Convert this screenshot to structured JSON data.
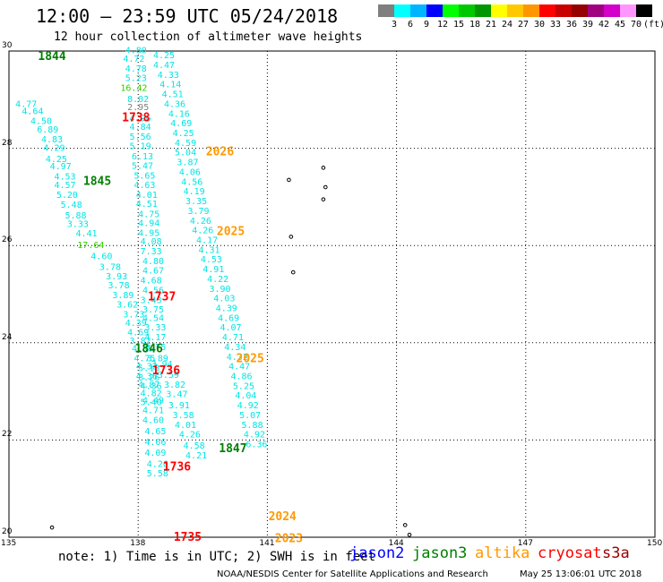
{
  "header": {
    "title": "12:00 – 23:59 UTC 05/24/2018",
    "subtitle": "12 hour collection of altimeter wave heights"
  },
  "colorbar": {
    "colors": [
      "#7f7f7f",
      "#00ffff",
      "#00b4ff",
      "#0000ff",
      "#00ff00",
      "#00c800",
      "#009600",
      "#ffff00",
      "#ffc800",
      "#ff9600",
      "#ff0000",
      "#c80000",
      "#960000",
      "#a00080",
      "#d200c8",
      "#ff96ff",
      "#000000"
    ],
    "labels": [
      "3",
      "6",
      "9",
      "12",
      "15",
      "18",
      "21",
      "24",
      "27",
      "30",
      "33",
      "36",
      "39",
      "42",
      "45",
      "70",
      "(ft)"
    ]
  },
  "chart_data": {
    "type": "scatter",
    "title": "12:00 – 23:59 UTC 05/24/2018",
    "subtitle": "12 hour collection of altimeter wave heights",
    "xlim": [
      135,
      150
    ],
    "ylim": [
      20,
      30
    ],
    "x_ticks": [
      "135",
      "138",
      "141",
      "144",
      "147",
      "150"
    ],
    "y_ticks": [
      "20",
      "22",
      "24",
      "26",
      "28",
      "30"
    ],
    "grid": true,
    "colors": {
      "jason2": "#0000ff",
      "jason3": "#008000",
      "altika": "#ff9900",
      "cryosat": "#ff0000",
      "s3a": "#990000",
      "swh_low": "#00e5e5",
      "swh_mid": "#33cc00",
      "no_data": "#808080"
    },
    "legend": [
      "jason2",
      "jason3",
      "altika",
      "cryosat",
      "s3a"
    ],
    "swh_tracks": [
      {
        "name": "track-a",
        "points": [
          {
            "lon": 135.4,
            "lat": 28.85,
            "v": "4.77"
          },
          {
            "lon": 135.55,
            "lat": 28.7,
            "v": "4.64"
          },
          {
            "lon": 135.75,
            "lat": 28.5,
            "v": "4.50"
          },
          {
            "lon": 135.9,
            "lat": 28.32,
            "v": "6.89"
          },
          {
            "lon": 136.0,
            "lat": 28.12,
            "v": "4.83"
          },
          {
            "lon": 136.05,
            "lat": 27.95,
            "v": "4.29"
          },
          {
            "lon": 136.1,
            "lat": 27.72,
            "v": "4.25"
          },
          {
            "lon": 136.2,
            "lat": 27.57,
            "v": "4.97"
          },
          {
            "lon": 136.3,
            "lat": 27.36,
            "v": "4.53"
          },
          {
            "lon": 136.3,
            "lat": 27.18,
            "v": "4.57"
          },
          {
            "lon": 136.35,
            "lat": 26.98,
            "v": "5.20"
          },
          {
            "lon": 136.45,
            "lat": 26.78,
            "v": "5.48"
          },
          {
            "lon": 136.55,
            "lat": 26.56,
            "v": "5.88"
          },
          {
            "lon": 136.6,
            "lat": 26.38,
            "v": "3.33"
          },
          {
            "lon": 136.8,
            "lat": 26.19,
            "v": "4.41"
          },
          {
            "lon": 136.9,
            "lat": 25.95,
            "v": "17.64",
            "c": "#33cc00"
          },
          {
            "lon": 137.15,
            "lat": 25.72,
            "v": "4.60"
          },
          {
            "lon": 137.35,
            "lat": 25.5,
            "v": "3.78"
          },
          {
            "lon": 137.5,
            "lat": 25.3,
            "v": "3.93"
          },
          {
            "lon": 137.55,
            "lat": 25.12,
            "v": "3.78"
          },
          {
            "lon": 137.65,
            "lat": 24.92,
            "v": "3.89"
          },
          {
            "lon": 137.75,
            "lat": 24.72,
            "v": "3.62"
          },
          {
            "lon": 137.9,
            "lat": 24.52,
            "v": "3.73"
          },
          {
            "lon": 137.95,
            "lat": 24.35,
            "v": "4.39"
          },
          {
            "lon": 138.0,
            "lat": 24.15,
            "v": "4.69"
          },
          {
            "lon": 138.05,
            "lat": 23.98,
            "v": "3.82"
          },
          {
            "lon": 138.1,
            "lat": 23.82,
            "v": "4.05"
          },
          {
            "lon": 138.15,
            "lat": 23.62,
            "v": "4.75"
          },
          {
            "lon": 138.2,
            "lat": 23.45,
            "v": "4.32"
          },
          {
            "lon": 138.2,
            "lat": 23.25,
            "v": "4.36"
          },
          {
            "lon": 138.25,
            "lat": 23.08,
            "v": "4.87"
          },
          {
            "lon": 138.3,
            "lat": 22.9,
            "v": "4.82"
          },
          {
            "lon": 138.3,
            "lat": 22.72,
            "v": "5.40"
          }
        ]
      },
      {
        "name": "track-b",
        "points": [
          {
            "lon": 137.95,
            "lat": 29.95,
            "v": "4.80"
          },
          {
            "lon": 137.9,
            "lat": 29.78,
            "v": "4.72"
          },
          {
            "lon": 137.95,
            "lat": 29.58,
            "v": "4.78"
          },
          {
            "lon": 137.95,
            "lat": 29.38,
            "v": "5.23"
          },
          {
            "lon": 137.9,
            "lat": 29.18,
            "v": "16.42",
            "c": "#33cc00"
          },
          {
            "lon": 138.0,
            "lat": 28.95,
            "v": "8.02"
          },
          {
            "lon": 138.0,
            "lat": 28.78,
            "v": "2.95",
            "c": "#808080"
          },
          {
            "lon": 138.05,
            "lat": 28.55,
            "v": "4.96"
          },
          {
            "lon": 138.05,
            "lat": 28.38,
            "v": "4.84"
          },
          {
            "lon": 138.05,
            "lat": 28.18,
            "v": "5.56"
          },
          {
            "lon": 138.05,
            "lat": 27.98,
            "v": "5.19"
          },
          {
            "lon": 138.1,
            "lat": 27.77,
            "v": "6.13"
          },
          {
            "lon": 138.1,
            "lat": 27.58,
            "v": "5.47"
          },
          {
            "lon": 138.15,
            "lat": 27.38,
            "v": "5.65"
          },
          {
            "lon": 138.15,
            "lat": 27.18,
            "v": "4.63"
          },
          {
            "lon": 138.2,
            "lat": 26.98,
            "v": "4.01"
          },
          {
            "lon": 138.2,
            "lat": 26.8,
            "v": "4.51"
          },
          {
            "lon": 138.25,
            "lat": 26.58,
            "v": "4.75"
          },
          {
            "lon": 138.25,
            "lat": 26.4,
            "v": "4.94"
          },
          {
            "lon": 138.25,
            "lat": 26.2,
            "v": "4.95"
          },
          {
            "lon": 138.3,
            "lat": 26.02,
            "v": "4.08"
          },
          {
            "lon": 138.3,
            "lat": 25.82,
            "v": "7.33"
          },
          {
            "lon": 138.35,
            "lat": 25.62,
            "v": "4.80"
          },
          {
            "lon": 138.35,
            "lat": 25.42,
            "v": "4.67"
          },
          {
            "lon": 138.3,
            "lat": 25.22,
            "v": "4.68"
          },
          {
            "lon": 138.35,
            "lat": 25.02,
            "v": "4.56"
          },
          {
            "lon": 138.3,
            "lat": 24.82,
            "v": "3.43"
          },
          {
            "lon": 138.35,
            "lat": 24.62,
            "v": "3.75"
          },
          {
            "lon": 138.35,
            "lat": 24.45,
            "v": "4.54"
          },
          {
            "lon": 138.4,
            "lat": 24.25,
            "v": "3.33"
          },
          {
            "lon": 138.4,
            "lat": 24.05,
            "v": "4.17"
          },
          {
            "lon": 138.4,
            "lat": 23.85,
            "v": "3.75"
          },
          {
            "lon": 138.45,
            "lat": 23.62,
            "v": "3.89"
          },
          {
            "lon": 138.25,
            "lat": 23.42,
            "v": "5.13"
          },
          {
            "lon": 138.25,
            "lat": 23.22,
            "v": "8.26"
          },
          {
            "lon": 138.3,
            "lat": 23.05,
            "v": "4.36"
          },
          {
            "lon": 138.35,
            "lat": 22.75,
            "v": "4.49"
          },
          {
            "lon": 138.35,
            "lat": 22.55,
            "v": "4.71"
          },
          {
            "lon": 138.35,
            "lat": 22.35,
            "v": "4.60"
          },
          {
            "lon": 138.4,
            "lat": 22.12,
            "v": "4.65"
          },
          {
            "lon": 138.4,
            "lat": 21.9,
            "v": "4.66"
          },
          {
            "lon": 138.4,
            "lat": 21.68,
            "v": "4.09"
          },
          {
            "lon": 138.45,
            "lat": 21.45,
            "v": "4.20"
          },
          {
            "lon": 138.45,
            "lat": 21.25,
            "v": "5.58"
          }
        ]
      },
      {
        "name": "track-c",
        "points": [
          {
            "lon": 138.55,
            "lat": 23.5,
            "v": "3.94"
          },
          {
            "lon": 138.7,
            "lat": 23.28,
            "v": "3.59"
          },
          {
            "lon": 138.85,
            "lat": 23.08,
            "v": "3.82"
          },
          {
            "lon": 138.9,
            "lat": 22.88,
            "v": "3.47"
          },
          {
            "lon": 138.95,
            "lat": 22.65,
            "v": "3.91"
          },
          {
            "lon": 139.05,
            "lat": 22.45,
            "v": "3.58"
          },
          {
            "lon": 139.1,
            "lat": 22.25,
            "v": "4.01"
          },
          {
            "lon": 139.2,
            "lat": 22.05,
            "v": "4.26"
          },
          {
            "lon": 139.3,
            "lat": 21.82,
            "v": "4.58"
          },
          {
            "lon": 139.35,
            "lat": 21.62,
            "v": "4.21"
          }
        ]
      },
      {
        "name": "track-d",
        "points": [
          {
            "lon": 138.6,
            "lat": 29.85,
            "v": "4.25"
          },
          {
            "lon": 138.6,
            "lat": 29.65,
            "v": "4.47"
          },
          {
            "lon": 138.7,
            "lat": 29.45,
            "v": "4.33"
          },
          {
            "lon": 138.75,
            "lat": 29.25,
            "v": "4.14"
          },
          {
            "lon": 138.8,
            "lat": 29.05,
            "v": "4.51"
          },
          {
            "lon": 138.85,
            "lat": 28.85,
            "v": "4.36"
          },
          {
            "lon": 138.95,
            "lat": 28.65,
            "v": "4.16"
          },
          {
            "lon": 139.0,
            "lat": 28.45,
            "v": "4.69"
          },
          {
            "lon": 139.05,
            "lat": 28.25,
            "v": "4.25"
          },
          {
            "lon": 139.1,
            "lat": 28.05,
            "v": "4.59"
          },
          {
            "lon": 139.1,
            "lat": 27.85,
            "v": "5.04"
          },
          {
            "lon": 139.15,
            "lat": 27.65,
            "v": "3.87"
          },
          {
            "lon": 139.2,
            "lat": 27.45,
            "v": "4.06"
          },
          {
            "lon": 139.25,
            "lat": 27.25,
            "v": "4.56"
          },
          {
            "lon": 139.3,
            "lat": 27.05,
            "v": "4.19"
          },
          {
            "lon": 139.35,
            "lat": 26.85,
            "v": "3.35"
          },
          {
            "lon": 139.4,
            "lat": 26.65,
            "v": "3.79"
          },
          {
            "lon": 139.45,
            "lat": 26.45,
            "v": "4.26"
          },
          {
            "lon": 139.5,
            "lat": 26.25,
            "v": "4.26"
          },
          {
            "lon": 139.6,
            "lat": 26.05,
            "v": "4.17"
          },
          {
            "lon": 139.65,
            "lat": 25.85,
            "v": "4.31"
          },
          {
            "lon": 139.7,
            "lat": 25.65,
            "v": "4.53"
          },
          {
            "lon": 139.75,
            "lat": 25.45,
            "v": "4.91"
          },
          {
            "lon": 139.85,
            "lat": 25.25,
            "v": "4.22"
          },
          {
            "lon": 139.9,
            "lat": 25.05,
            "v": "3.90"
          },
          {
            "lon": 140.0,
            "lat": 24.85,
            "v": "4.03"
          },
          {
            "lon": 140.05,
            "lat": 24.65,
            "v": "4.39"
          },
          {
            "lon": 140.1,
            "lat": 24.45,
            "v": "4.69"
          },
          {
            "lon": 140.15,
            "lat": 24.25,
            "v": "4.07"
          },
          {
            "lon": 140.2,
            "lat": 24.05,
            "v": "4.71"
          },
          {
            "lon": 140.25,
            "lat": 23.85,
            "v": "4.34"
          },
          {
            "lon": 140.3,
            "lat": 23.65,
            "v": "4.32"
          },
          {
            "lon": 140.35,
            "lat": 23.45,
            "v": "4.47"
          },
          {
            "lon": 140.4,
            "lat": 23.25,
            "v": "4.86"
          },
          {
            "lon": 140.45,
            "lat": 23.05,
            "v": "5.25"
          },
          {
            "lon": 140.5,
            "lat": 22.85,
            "v": "4.04"
          },
          {
            "lon": 140.55,
            "lat": 22.65,
            "v": "4.92"
          },
          {
            "lon": 140.6,
            "lat": 22.45,
            "v": "5.07"
          },
          {
            "lon": 140.65,
            "lat": 22.25,
            "v": "5.88"
          },
          {
            "lon": 140.7,
            "lat": 22.05,
            "v": "4.92"
          },
          {
            "lon": 140.75,
            "lat": 21.85,
            "v": "6.36"
          }
        ]
      }
    ],
    "time_labels": [
      {
        "lon": 136.0,
        "lat": 29.82,
        "t": "1844",
        "c": "#008000"
      },
      {
        "lon": 137.95,
        "lat": 28.55,
        "t": "1738",
        "c": "#ff0000"
      },
      {
        "lon": 139.9,
        "lat": 27.85,
        "t": "2026",
        "c": "#ff9900"
      },
      {
        "lon": 137.05,
        "lat": 27.25,
        "t": "1845",
        "c": "#008000"
      },
      {
        "lon": 140.15,
        "lat": 26.22,
        "t": "2025",
        "c": "#ff9900"
      },
      {
        "lon": 138.55,
        "lat": 24.87,
        "t": "1737",
        "c": "#ff0000"
      },
      {
        "lon": 138.25,
        "lat": 23.8,
        "t": "1846",
        "c": "#008000"
      },
      {
        "lon": 138.65,
        "lat": 23.35,
        "t": "1736",
        "c": "#ff0000"
      },
      {
        "lon": 140.6,
        "lat": 23.6,
        "t": "2025",
        "c": "#ff9900"
      },
      {
        "lon": 140.2,
        "lat": 21.75,
        "t": "1847",
        "c": "#008000"
      },
      {
        "lon": 138.9,
        "lat": 21.37,
        "t": "1736",
        "c": "#ff0000"
      },
      {
        "lon": 141.35,
        "lat": 20.35,
        "t": "2024",
        "c": "#ff9900"
      },
      {
        "lon": 139.15,
        "lat": 19.93,
        "t": "1735",
        "c": "#ff0000"
      },
      {
        "lon": 141.5,
        "lat": 19.9,
        "t": "2023",
        "c": "#ff9900"
      }
    ]
  },
  "footer": {
    "note": "note: 1) Time is in UTC; 2) SWH is in feet",
    "legend": [
      {
        "name": "jason2",
        "color": "#0000ff"
      },
      {
        "name": "jason3",
        "color": "#008000"
      },
      {
        "name": "altika",
        "color": "#ff9900"
      },
      {
        "name": "cryosat",
        "color": "#ff0000"
      },
      {
        "name": "s3a",
        "color": "#990000"
      }
    ],
    "credit": "NOAA/NESDIS Center for Satellite Applications and Research",
    "timestamp": "May 25 13:06:01 UTC 2018"
  }
}
